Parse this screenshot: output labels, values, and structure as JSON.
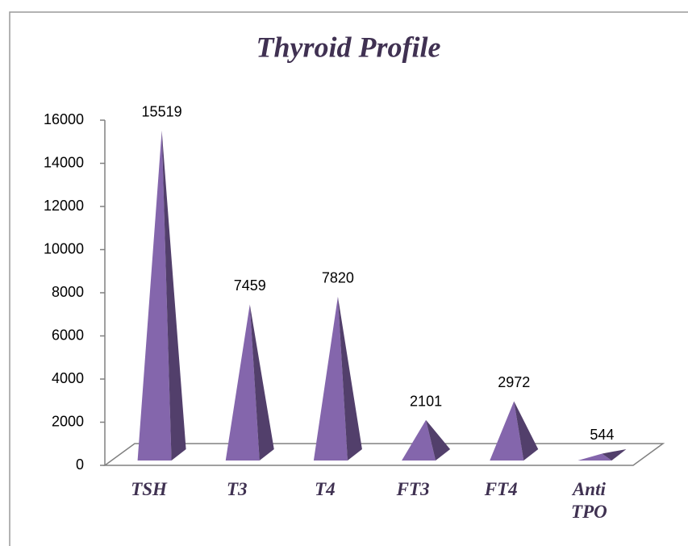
{
  "chart_data": {
    "type": "pyramid",
    "title": "Thyroid Profile",
    "categories": [
      "TSH",
      "T3",
      "T4",
      "FT3",
      "FT4",
      "Anti TPO"
    ],
    "values": [
      15519,
      7459,
      7820,
      2101,
      2972,
      544
    ],
    "color": "#8466ac",
    "ylim": [
      0,
      16000
    ],
    "yticks": [
      0,
      2000,
      4000,
      6000,
      8000,
      10000,
      12000,
      14000,
      16000
    ],
    "grid": false
  }
}
